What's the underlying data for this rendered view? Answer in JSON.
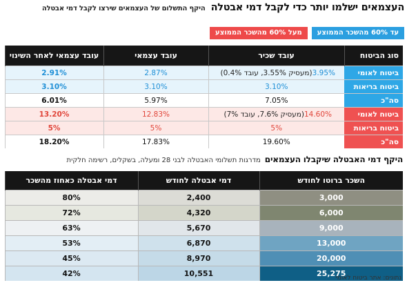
{
  "title": "העצמאים ישלמו יותר כדי לקבל  דמי אבטלה",
  "subtitle": "היקף התשלום של העצמאים שירצו לקבל דמי אבטלה",
  "legend": {
    "blue": "עד 60% מהשכר הממוצע",
    "red": "מעל 60% מהשכר הממוצע",
    "blue_color": "#2b9fe0",
    "red_color": "#ee4a4a"
  },
  "table1": {
    "headers": [
      "סוג הביטוח",
      "עובד שכיר",
      "עובד עצמאי",
      "עובד עצמאי לאחר השינוי"
    ],
    "rows": [
      {
        "group": "blue",
        "type": "ביטוח לאומי",
        "employee_value": "3.95%",
        "employee_note": "(מעסיק 3.55%, עובד 0.4%)",
        "self": "2.87%",
        "after": "2.91%"
      },
      {
        "group": "blue",
        "type": "ביטוח בריאות",
        "employee_value": "3.10%",
        "employee_note": "",
        "self": "3.10%",
        "after": "3.10%"
      },
      {
        "group": "blue",
        "type": "סה\"כ",
        "employee_value": "7.05%",
        "employee_note": "",
        "self": "5.97%",
        "after": "6.01%"
      },
      {
        "group": "red",
        "type": "ביטוח לאומי",
        "employee_value": "14.60%",
        "employee_note": "(מעסיק 7.6%, עובד 7%)",
        "self": "12.83%",
        "after": "13.20%"
      },
      {
        "group": "red",
        "type": "ביטוח בריאות",
        "employee_value": "5%",
        "employee_note": "",
        "self": "5%",
        "after": "5%"
      },
      {
        "group": "red",
        "type": "סה\"כ",
        "employee_value": "19.60%",
        "employee_note": "",
        "self": "17.83%",
        "after": "18.20%"
      }
    ]
  },
  "section2": {
    "title": "היקף דמי האבטלה שיקבלו העצמאים",
    "subtitle": "מדרגות תשלומי האבטלה לבני 28 ומעלה, בשקלים, רשימה חלקית"
  },
  "table2": {
    "headers": [
      "השכר ברוטו לחודש",
      "דמי אבטלה לחודש",
      "דמי אבטלה כאחוז מהשכר"
    ],
    "rows": [
      {
        "salary": "3,000",
        "benefit": "2,400",
        "pct": "80%"
      },
      {
        "salary": "6,000",
        "benefit": "4,320",
        "pct": "72%"
      },
      {
        "salary": "9,000",
        "benefit": "5,670",
        "pct": "63%"
      },
      {
        "salary": "13,000",
        "benefit": "6,870",
        "pct": "53%"
      },
      {
        "salary": "20,000",
        "benefit": "8,970",
        "pct": "45%"
      },
      {
        "salary": "25,275",
        "benefit": "10,551",
        "pct": "42%"
      }
    ],
    "salary_colors": [
      "#8f8f82",
      "#7f8670",
      "#a8b3bc",
      "#6fa4c2",
      "#4f8fb5",
      "#0f5f86"
    ],
    "benefit_colors": [
      "#dcdcd6",
      "#d4d6ca",
      "#e1e6ea",
      "#cfe1ec",
      "#c5dbe8",
      "#bcd6e6"
    ],
    "pct_colors": [
      "#ecece8",
      "#e6e8e0",
      "#eef1f3",
      "#e3eef5",
      "#dce9f2",
      "#d4e5f0"
    ]
  },
  "source": "נתונים: אתר ביטוח לאומי"
}
